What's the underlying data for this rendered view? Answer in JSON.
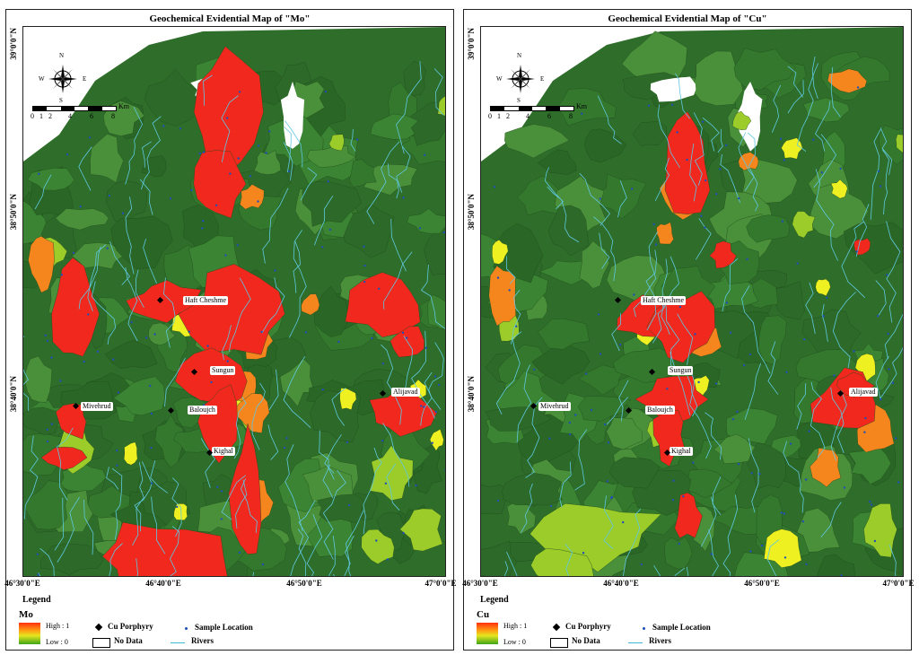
{
  "maps": [
    {
      "id": "mo",
      "title": "Geochemical Evidential Map of \"Mo\"",
      "legend_variable": "Mo",
      "hotspots": [
        [
          225,
          95,
          38,
          70,
          -10
        ],
        [
          215,
          175,
          30,
          40,
          0
        ],
        [
          160,
          305,
          40,
          22,
          0
        ],
        [
          235,
          320,
          55,
          48,
          0
        ],
        [
          210,
          395,
          35,
          32,
          0
        ],
        [
          218,
          440,
          22,
          40,
          0
        ],
        [
          250,
          520,
          18,
          70,
          0
        ],
        [
          150,
          590,
          75,
          42,
          -8
        ],
        [
          400,
          310,
          45,
          35,
          -20
        ],
        [
          430,
          350,
          20,
          18,
          0
        ],
        [
          420,
          430,
          35,
          25,
          0
        ],
        [
          55,
          320,
          25,
          60,
          0
        ],
        [
          55,
          440,
          20,
          20,
          0
        ],
        [
          45,
          480,
          22,
          14,
          0
        ]
      ],
      "warm": [
        [
          260,
          350,
          20,
          20,
          0
        ],
        [
          245,
          400,
          18,
          20,
          0
        ],
        [
          255,
          430,
          18,
          22,
          0
        ],
        [
          260,
          530,
          18,
          30,
          0
        ],
        [
          20,
          260,
          14,
          35,
          0
        ],
        [
          255,
          190,
          14,
          14,
          0
        ],
        [
          320,
          310,
          10,
          12,
          0
        ]
      ],
      "yellow": [
        [
          180,
          330,
          16,
          16,
          0
        ],
        [
          255,
          345,
          14,
          16,
          0
        ],
        [
          245,
          420,
          12,
          14,
          0
        ],
        [
          120,
          475,
          8,
          12,
          0
        ],
        [
          175,
          540,
          8,
          10,
          0
        ],
        [
          360,
          415,
          10,
          12,
          0
        ],
        [
          440,
          405,
          10,
          10,
          0
        ],
        [
          460,
          460,
          8,
          12,
          0
        ]
      ],
      "lightgreen": [
        [
          410,
          500,
          25,
          30,
          0
        ],
        [
          445,
          560,
          22,
          28,
          0
        ],
        [
          55,
          470,
          22,
          24,
          0
        ],
        [
          255,
          430,
          14,
          18,
          0
        ],
        [
          350,
          130,
          10,
          10,
          0
        ],
        [
          30,
          250,
          16,
          18,
          0
        ],
        [
          470,
          90,
          8,
          12,
          0
        ],
        [
          395,
          580,
          18,
          20,
          0
        ]
      ]
    },
    {
      "id": "cu",
      "title": "Geochemical Evidential Map of \"Cu\"",
      "legend_variable": "Cu",
      "hotspots": [
        [
          230,
          150,
          25,
          55,
          0
        ],
        [
          180,
          325,
          32,
          25,
          0
        ],
        [
          225,
          335,
          35,
          40,
          0
        ],
        [
          215,
          415,
          40,
          28,
          0
        ],
        [
          210,
          455,
          18,
          30,
          0
        ],
        [
          230,
          545,
          15,
          25,
          0
        ],
        [
          405,
          420,
          35,
          35,
          0
        ],
        [
          415,
          400,
          20,
          14,
          0
        ],
        [
          270,
          255,
          14,
          14,
          0
        ],
        [
          425,
          245,
          10,
          10,
          0
        ]
      ],
      "warm": [
        [
          225,
          180,
          25,
          30,
          0
        ],
        [
          245,
          345,
          25,
          22,
          0
        ],
        [
          25,
          300,
          15,
          40,
          0
        ],
        [
          385,
          490,
          16,
          22,
          0
        ],
        [
          440,
          450,
          20,
          25,
          0
        ],
        [
          410,
          60,
          22,
          14,
          0
        ],
        [
          300,
          150,
          12,
          10,
          0
        ],
        [
          205,
          230,
          10,
          12,
          0
        ]
      ],
      "yellow": [
        [
          185,
          340,
          14,
          14,
          0
        ],
        [
          430,
          380,
          12,
          16,
          0
        ],
        [
          335,
          580,
          22,
          25,
          0
        ],
        [
          345,
          135,
          12,
          12,
          0
        ],
        [
          245,
          400,
          10,
          12,
          0
        ],
        [
          400,
          180,
          10,
          10,
          0
        ],
        [
          20,
          250,
          10,
          14,
          0
        ],
        [
          380,
          290,
          8,
          10,
          0
        ]
      ],
      "lightgreen": [
        [
          130,
          565,
          70,
          38,
          0
        ],
        [
          90,
          600,
          35,
          22,
          0
        ],
        [
          30,
          330,
          14,
          22,
          0
        ],
        [
          200,
          450,
          14,
          18,
          0
        ],
        [
          445,
          560,
          20,
          30,
          0
        ],
        [
          360,
          220,
          12,
          14,
          0
        ],
        [
          290,
          105,
          10,
          10,
          0
        ],
        [
          470,
          130,
          10,
          10,
          0
        ]
      ]
    }
  ],
  "places": [
    {
      "name": "Haft Cheshme",
      "x": 178,
      "y": 300
    },
    {
      "name": "Sungun",
      "x": 208,
      "y": 378
    },
    {
      "name": "Mivehrud",
      "x": 64,
      "y": 418
    },
    {
      "name": "Baloujch",
      "x": 183,
      "y": 422
    },
    {
      "name": "Kighal",
      "x": 210,
      "y": 468
    },
    {
      "name": "Alijavad",
      "x": 410,
      "y": 402
    }
  ],
  "cu_porphyry": [
    {
      "x": 150,
      "y": 302
    },
    {
      "x": 188,
      "y": 382
    },
    {
      "x": 56,
      "y": 420
    },
    {
      "x": 162,
      "y": 425
    },
    {
      "x": 205,
      "y": 472
    },
    {
      "x": 398,
      "y": 406
    }
  ],
  "compass": {
    "n": "N",
    "s": "S",
    "e": "E",
    "w": "W"
  },
  "scale": {
    "numbers": [
      "0",
      "1",
      "2",
      "4",
      "6",
      "8"
    ],
    "unit": "Km"
  },
  "lat_labels": [
    "39°0'0\"N",
    "38°50'0\"N",
    "38°40'0\"N"
  ],
  "lon_labels": [
    "46°30'0\"E",
    "46°40'0\"E",
    "46°50'0\"E",
    "47°0'0\"E"
  ],
  "legend": {
    "title": "Legend",
    "high": "High : 1",
    "low": "Low : 0",
    "cu_porphyry": "Cu Porphyry",
    "sample_location": "Sample Location",
    "no_data": "No Data",
    "rivers": "Rivers"
  },
  "colors": {
    "background_green": "#2f6e2a",
    "dark_green": "#275f24",
    "high_red": "#f0281e",
    "orange": "#f5861e",
    "yellow": "#eef022",
    "light_green": "#9ccc2a",
    "river": "#5fc8e0",
    "sample": "#1f4fb8"
  }
}
